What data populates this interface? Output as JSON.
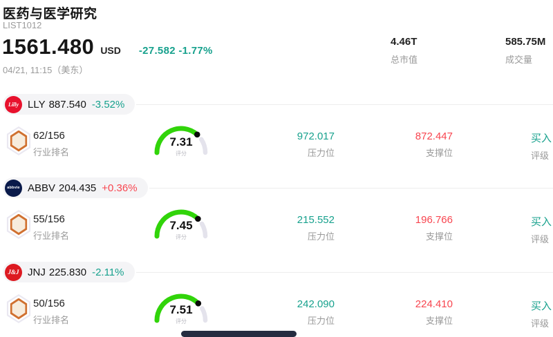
{
  "header": {
    "title": "医药与医学研究",
    "code": "LIST1012",
    "price": "1561.480",
    "currency": "USD",
    "change": "-27.582",
    "change_pct": "-1.77%",
    "direction": "down",
    "timestamp": "04/21, 11:15（美东）",
    "market_cap": {
      "value": "4.46T",
      "label": "总市值"
    },
    "volume": {
      "value": "585.75M",
      "label": "成交量"
    }
  },
  "labels": {
    "rank": "行业排名",
    "score": "评分",
    "resistance": "压力位",
    "support": "支撑位",
    "rating": "评级"
  },
  "colors": {
    "down_teal": "#17a18d",
    "up_red": "#f8454f",
    "gauge_green": "#31d40a",
    "gauge_track": "#e4e3ec"
  },
  "stocks": [
    {
      "ticker": "LLY",
      "price": "887.540",
      "change_pct": "-3.52%",
      "direction": "down",
      "logo": {
        "text": "Lilly",
        "bg": "#e8112d"
      },
      "rank": "62/156",
      "score": "7.31",
      "score_value": 7.31,
      "resistance": "972.017",
      "support": "872.447",
      "rating": "买入"
    },
    {
      "ticker": "ABBV",
      "price": "204.435",
      "change_pct": "+0.36%",
      "direction": "up",
      "logo": {
        "text": "abbvie",
        "bg": "#0a1a4a"
      },
      "rank": "55/156",
      "score": "7.45",
      "score_value": 7.45,
      "resistance": "215.552",
      "support": "196.766",
      "rating": "买入"
    },
    {
      "ticker": "JNJ",
      "price": "225.830",
      "change_pct": "-2.11%",
      "direction": "down",
      "logo": {
        "text": "J&J",
        "bg": "#dd1a21"
      },
      "rank": "50/156",
      "score": "7.51",
      "score_value": 7.51,
      "resistance": "242.090",
      "support": "224.410",
      "rating": "买入"
    }
  ]
}
